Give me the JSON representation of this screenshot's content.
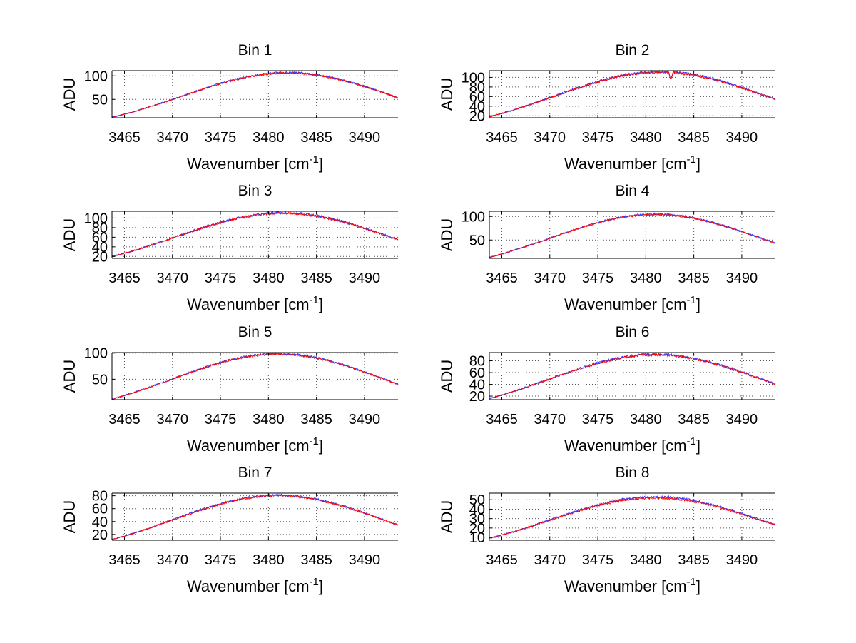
{
  "figure": {
    "background": "#ffffff"
  },
  "x_tick_values": [
    3465,
    3470,
    3475,
    3480,
    3485,
    3490
  ],
  "colors": {
    "series_blue": "#3a3aff",
    "series_red": "#ff0000",
    "grid": "#555555",
    "axes": "#000000"
  },
  "chart_data": [
    {
      "type": "line",
      "title": "Bin 1",
      "xlabel": "Wavenumber [cm",
      "xlabel_sup": "-1",
      "xlabel_close": "]",
      "ylabel": "ADU",
      "xlim": [
        3463.7,
        3493.5
      ],
      "ylim": [
        11,
        111
      ],
      "yticks": [
        50,
        100
      ],
      "grid": true,
      "series": [
        {
          "name": "blue",
          "color": "#3a3aff",
          "y_edge": 12,
          "peak": 107,
          "center": 3482.0,
          "sigma": 11.0,
          "noise": 2.0
        },
        {
          "name": "red",
          "color": "#ff0000",
          "y_edge": 12,
          "peak": 106,
          "center": 3482.0,
          "sigma": 11.0,
          "noise": 2.0
        }
      ]
    },
    {
      "type": "line",
      "title": "Bin 2",
      "xlabel": "Wavenumber [cm",
      "xlabel_sup": "-1",
      "xlabel_close": "]",
      "ylabel": "ADU",
      "xlim": [
        3463.7,
        3493.5
      ],
      "ylim": [
        16,
        114
      ],
      "yticks": [
        20,
        40,
        60,
        80,
        100
      ],
      "grid": true,
      "dip": {
        "x": 3482.6,
        "depth": 14
      },
      "series": [
        {
          "name": "blue",
          "color": "#3a3aff",
          "y_edge": 18,
          "peak": 112,
          "center": 3481.5,
          "sigma": 11.0,
          "noise": 2.5
        },
        {
          "name": "red",
          "color": "#ff0000",
          "y_edge": 18,
          "peak": 111,
          "center": 3481.5,
          "sigma": 11.0,
          "noise": 2.5
        }
      ]
    },
    {
      "type": "line",
      "title": "Bin 3",
      "xlabel": "Wavenumber [cm",
      "xlabel_sup": "-1",
      "xlabel_close": "]",
      "ylabel": "ADU",
      "xlim": [
        3463.7,
        3493.5
      ],
      "ylim": [
        16,
        114
      ],
      "yticks": [
        20,
        40,
        60,
        80,
        100
      ],
      "grid": true,
      "series": [
        {
          "name": "blue",
          "color": "#3a3aff",
          "y_edge": 20,
          "peak": 111,
          "center": 3481.5,
          "sigma": 11.0,
          "noise": 2.5
        },
        {
          "name": "red",
          "color": "#ff0000",
          "y_edge": 20,
          "peak": 110,
          "center": 3481.5,
          "sigma": 11.0,
          "noise": 2.5
        }
      ]
    },
    {
      "type": "line",
      "title": "Bin 4",
      "xlabel": "Wavenumber [cm",
      "xlabel_sup": "-1",
      "xlabel_close": "]",
      "ylabel": "ADU",
      "xlim": [
        3463.7,
        3493.5
      ],
      "ylim": [
        11,
        111
      ],
      "yticks": [
        50,
        100
      ],
      "grid": true,
      "series": [
        {
          "name": "blue",
          "color": "#3a3aff",
          "y_edge": 13,
          "peak": 105,
          "center": 3481.0,
          "sigma": 11.0,
          "noise": 2.0
        },
        {
          "name": "red",
          "color": "#ff0000",
          "y_edge": 13,
          "peak": 104,
          "center": 3481.0,
          "sigma": 11.0,
          "noise": 2.0
        }
      ]
    },
    {
      "type": "line",
      "title": "Bin 5",
      "xlabel": "Wavenumber [cm",
      "xlabel_sup": "-1",
      "xlabel_close": "]",
      "ylabel": "ADU",
      "xlim": [
        3463.7,
        3493.5
      ],
      "ylim": [
        11,
        101
      ],
      "yticks": [
        50,
        100
      ],
      "grid": true,
      "series": [
        {
          "name": "blue",
          "color": "#3a3aff",
          "y_edge": 12,
          "peak": 99,
          "center": 3481.0,
          "sigma": 11.0,
          "noise": 2.0
        },
        {
          "name": "red",
          "color": "#ff0000",
          "y_edge": 12,
          "peak": 98,
          "center": 3481.0,
          "sigma": 11.0,
          "noise": 2.0
        }
      ]
    },
    {
      "type": "line",
      "title": "Bin 6",
      "xlabel": "Wavenumber [cm",
      "xlabel_sup": "-1",
      "xlabel_close": "]",
      "ylabel": "ADU",
      "xlim": [
        3463.7,
        3493.5
      ],
      "ylim": [
        14,
        94
      ],
      "yticks": [
        20,
        40,
        60,
        80
      ],
      "grid": true,
      "series": [
        {
          "name": "blue",
          "color": "#3a3aff",
          "y_edge": 16,
          "peak": 91,
          "center": 3481.0,
          "sigma": 11.0,
          "noise": 2.0
        },
        {
          "name": "red",
          "color": "#ff0000",
          "y_edge": 16,
          "peak": 90,
          "center": 3481.0,
          "sigma": 11.0,
          "noise": 2.0
        }
      ]
    },
    {
      "type": "line",
      "title": "Bin 7",
      "xlabel": "Wavenumber [cm",
      "xlabel_sup": "-1",
      "xlabel_close": "]",
      "ylabel": "ADU",
      "xlim": [
        3463.7,
        3493.5
      ],
      "ylim": [
        11,
        84
      ],
      "yticks": [
        20,
        40,
        60,
        80
      ],
      "grid": true,
      "series": [
        {
          "name": "blue",
          "color": "#3a3aff",
          "y_edge": 12,
          "peak": 81,
          "center": 3481.0,
          "sigma": 11.0,
          "noise": 1.5
        },
        {
          "name": "red",
          "color": "#ff0000",
          "y_edge": 12,
          "peak": 80,
          "center": 3481.0,
          "sigma": 11.0,
          "noise": 1.5
        }
      ]
    },
    {
      "type": "line",
      "title": "Bin 8",
      "xlabel": "Wavenumber [cm",
      "xlabel_sup": "-1",
      "xlabel_close": "]",
      "ylabel": "ADU",
      "xlim": [
        3463.7,
        3493.5
      ],
      "ylim": [
        7,
        57
      ],
      "yticks": [
        10,
        20,
        30,
        40,
        50
      ],
      "grid": true,
      "series": [
        {
          "name": "blue",
          "color": "#3a3aff",
          "y_edge": 9,
          "peak": 53,
          "center": 3481.0,
          "sigma": 11.0,
          "noise": 1.2
        },
        {
          "name": "red",
          "color": "#ff0000",
          "y_edge": 9,
          "peak": 52,
          "center": 3481.0,
          "sigma": 11.0,
          "noise": 1.2
        }
      ]
    }
  ]
}
